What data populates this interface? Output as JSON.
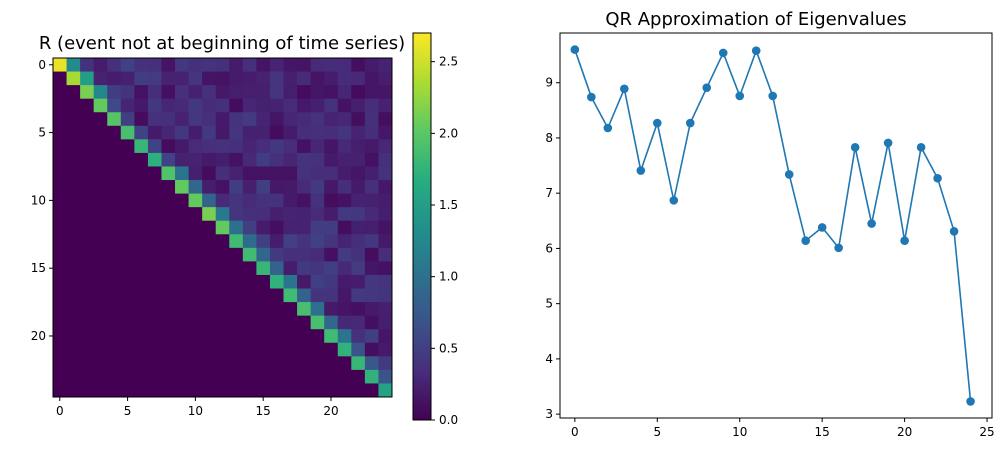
{
  "chart_data": [
    {
      "type": "heatmap",
      "title": "R (event not at beginning of time series)",
      "rows": 25,
      "cols": 25,
      "xticks": [
        0,
        5,
        10,
        15,
        20
      ],
      "yticks": [
        0,
        5,
        10,
        15,
        20
      ],
      "colormap": "viridis",
      "colorbar": {
        "min": 0.0,
        "max": 2.7,
        "ticks": [
          "0.0",
          "0.5",
          "1.0",
          "1.5",
          "2.0",
          "2.5"
        ]
      },
      "diagonal": [
        2.62,
        2.35,
        2.15,
        2.05,
        1.98,
        1.9,
        1.8,
        1.72,
        1.95,
        2.05,
        2.05,
        2.15,
        2.05,
        1.85,
        1.85,
        1.8,
        1.75,
        1.85,
        1.9,
        1.9,
        1.85,
        1.75,
        1.8,
        1.75,
        1.55
      ],
      "superdiagonal": [
        1.3,
        1.5,
        1.25,
        0.6,
        0.5,
        0.55,
        0.55,
        0.55,
        1.05,
        0.9,
        0.85,
        1.1,
        1.0,
        0.95,
        0.9,
        0.85,
        1.05,
        0.85,
        1.0,
        0.9,
        1.05,
        0.7,
        0.75,
        0.7
      ]
    },
    {
      "type": "line",
      "title": "QR Approximation of Eigenvalues",
      "x": [
        0,
        1,
        2,
        3,
        4,
        5,
        6,
        7,
        8,
        9,
        10,
        11,
        12,
        13,
        14,
        15,
        16,
        17,
        18,
        19,
        20,
        21,
        22,
        23,
        24
      ],
      "y": [
        9.6,
        8.74,
        8.18,
        8.89,
        7.41,
        8.27,
        6.87,
        8.27,
        8.91,
        9.54,
        8.76,
        9.58,
        8.76,
        7.34,
        6.14,
        6.38,
        6.01,
        7.83,
        6.45,
        7.91,
        6.14,
        7.83,
        7.27,
        6.31,
        3.23
      ],
      "xlim": [
        -0.9,
        25.3
      ],
      "ylim": [
        2.93,
        9.9
      ],
      "xticks": [
        0,
        5,
        10,
        15,
        20,
        25
      ],
      "yticks": [
        3,
        4,
        5,
        6,
        7,
        8,
        9
      ],
      "color": "#1f77b4",
      "marker": "circle"
    }
  ]
}
